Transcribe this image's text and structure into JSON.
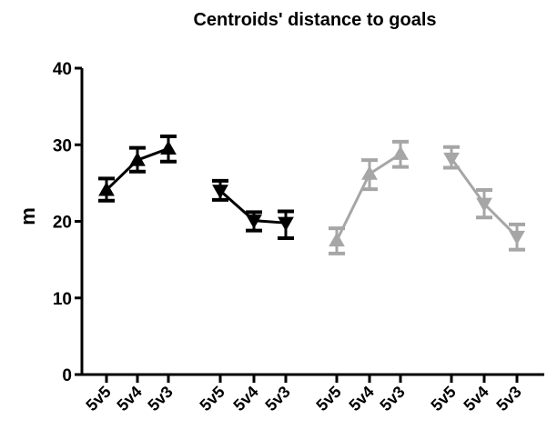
{
  "chart_data": {
    "type": "line",
    "title": "Centroids' distance to goals",
    "xlabel": "",
    "ylabel": "m",
    "ylim": [
      0,
      40
    ],
    "yticks": [
      0,
      10,
      20,
      30,
      40
    ],
    "grid": false,
    "series": [
      {
        "categories": [
          "5v5",
          "5v4",
          "5v3"
        ],
        "values": [
          24.1,
          28.0,
          29.5
        ],
        "error_low": [
          22.7,
          26.5,
          27.8
        ],
        "error_high": [
          25.6,
          29.6,
          31.1
        ],
        "color": "#000000",
        "marker": "triangle-up"
      },
      {
        "categories": [
          "5v5",
          "5v4",
          "5v3"
        ],
        "values": [
          24.0,
          20.1,
          19.8
        ],
        "error_low": [
          22.8,
          18.8,
          17.8
        ],
        "error_high": [
          25.3,
          21.2,
          21.3
        ],
        "color": "#000000",
        "marker": "triangle-down"
      },
      {
        "categories": [
          "5v5",
          "5v4",
          "5v3"
        ],
        "values": [
          17.5,
          26.2,
          28.8
        ],
        "error_low": [
          15.8,
          24.2,
          27.1
        ],
        "error_high": [
          19.1,
          28.0,
          30.4
        ],
        "color": "#a6a6a6",
        "marker": "triangle-up"
      },
      {
        "categories": [
          "5v5",
          "5v4",
          "5v3"
        ],
        "values": [
          28.2,
          22.3,
          18.0
        ],
        "error_low": [
          27.0,
          20.5,
          16.3
        ],
        "error_high": [
          29.7,
          24.1,
          19.6
        ],
        "color": "#a6a6a6",
        "marker": "triangle-down"
      }
    ]
  }
}
